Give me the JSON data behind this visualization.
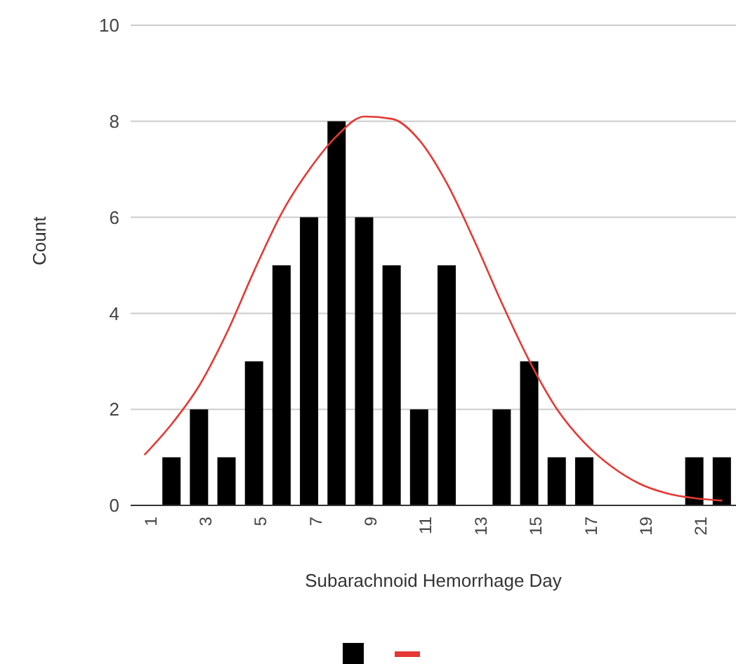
{
  "chart_data": {
    "type": "bar",
    "xlabel": "Subarachnoid Hemorrhage Day",
    "ylabel": "Count",
    "categories": [
      "1",
      null,
      "3",
      null,
      "5",
      null,
      "7",
      null,
      "9",
      null,
      "11",
      null,
      "13",
      null,
      "15",
      null,
      "17",
      null,
      "19",
      null,
      "21",
      null
    ],
    "series": [
      {
        "color": "#000000",
        "values": [
          0,
          1,
          2,
          1,
          3,
          5,
          6,
          8,
          6,
          5,
          2,
          5,
          0,
          2,
          3,
          1,
          1,
          0,
          0,
          0,
          1,
          1
        ]
      },
      {
        "type": "line",
        "color": "#e53935",
        "values": [
          1.05,
          1.7,
          2.5,
          3.6,
          4.9,
          6.1,
          7.0,
          7.7,
          8.1,
          8.05,
          7.6,
          6.7,
          5.5,
          4.2,
          3.0,
          2.0,
          1.3,
          0.8,
          0.45,
          0.25,
          0.15,
          0.1
        ]
      }
    ],
    "ylim": [
      0,
      10
    ],
    "yticks": [
      0,
      2,
      4,
      6,
      8,
      10
    ],
    "grid": "y",
    "marker": "none"
  }
}
